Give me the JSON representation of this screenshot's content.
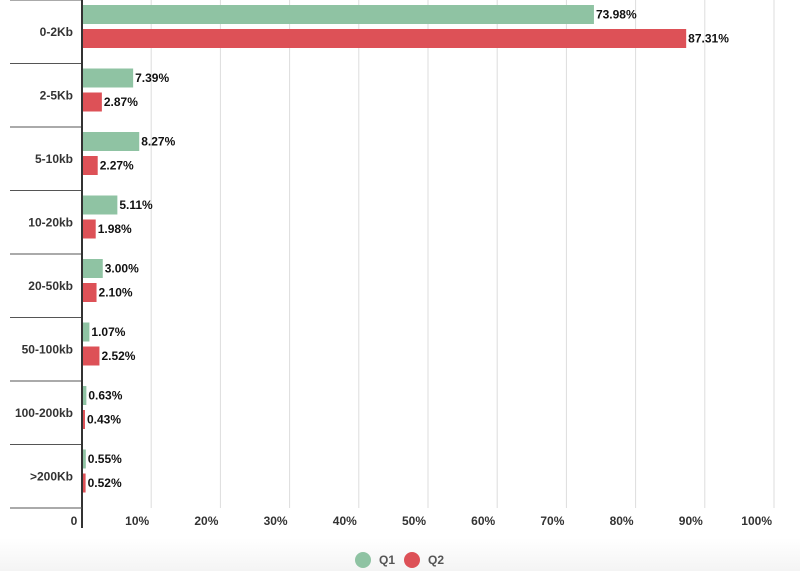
{
  "chart_data": {
    "type": "bar",
    "orientation": "horizontal",
    "categories": [
      "0-2Kb",
      "2-5Kb",
      "5-10kb",
      "10-20kb",
      "20-50kb",
      "50-100kb",
      "100-200kb",
      ">200Kb"
    ],
    "series": [
      {
        "name": "Q1",
        "color": "#8fc3a3",
        "values": [
          73.98,
          7.39,
          8.27,
          5.11,
          3.0,
          1.07,
          0.63,
          0.55
        ],
        "labels": [
          "73.98%",
          "7.39%",
          "8.27%",
          "5.11%",
          "3.00%",
          "1.07%",
          "0.63%",
          "0.55%"
        ]
      },
      {
        "name": "Q2",
        "color": "#dd5157",
        "values": [
          87.31,
          2.87,
          2.27,
          1.98,
          2.1,
          2.52,
          0.43,
          0.52
        ],
        "labels": [
          "87.31%",
          "2.87%",
          "2.27%",
          "1.98%",
          "2.10%",
          "2.52%",
          "0.43%",
          "0.52%"
        ]
      }
    ],
    "xlim": [
      0,
      100
    ],
    "xticks": [
      0,
      10,
      20,
      30,
      40,
      50,
      60,
      70,
      80,
      90,
      100
    ],
    "xtick_labels": [
      "0",
      "10%",
      "20%",
      "30%",
      "40%",
      "50%",
      "60%",
      "70%",
      "80%",
      "90%",
      "100%"
    ],
    "grid": true,
    "legend": "bottom-center"
  }
}
